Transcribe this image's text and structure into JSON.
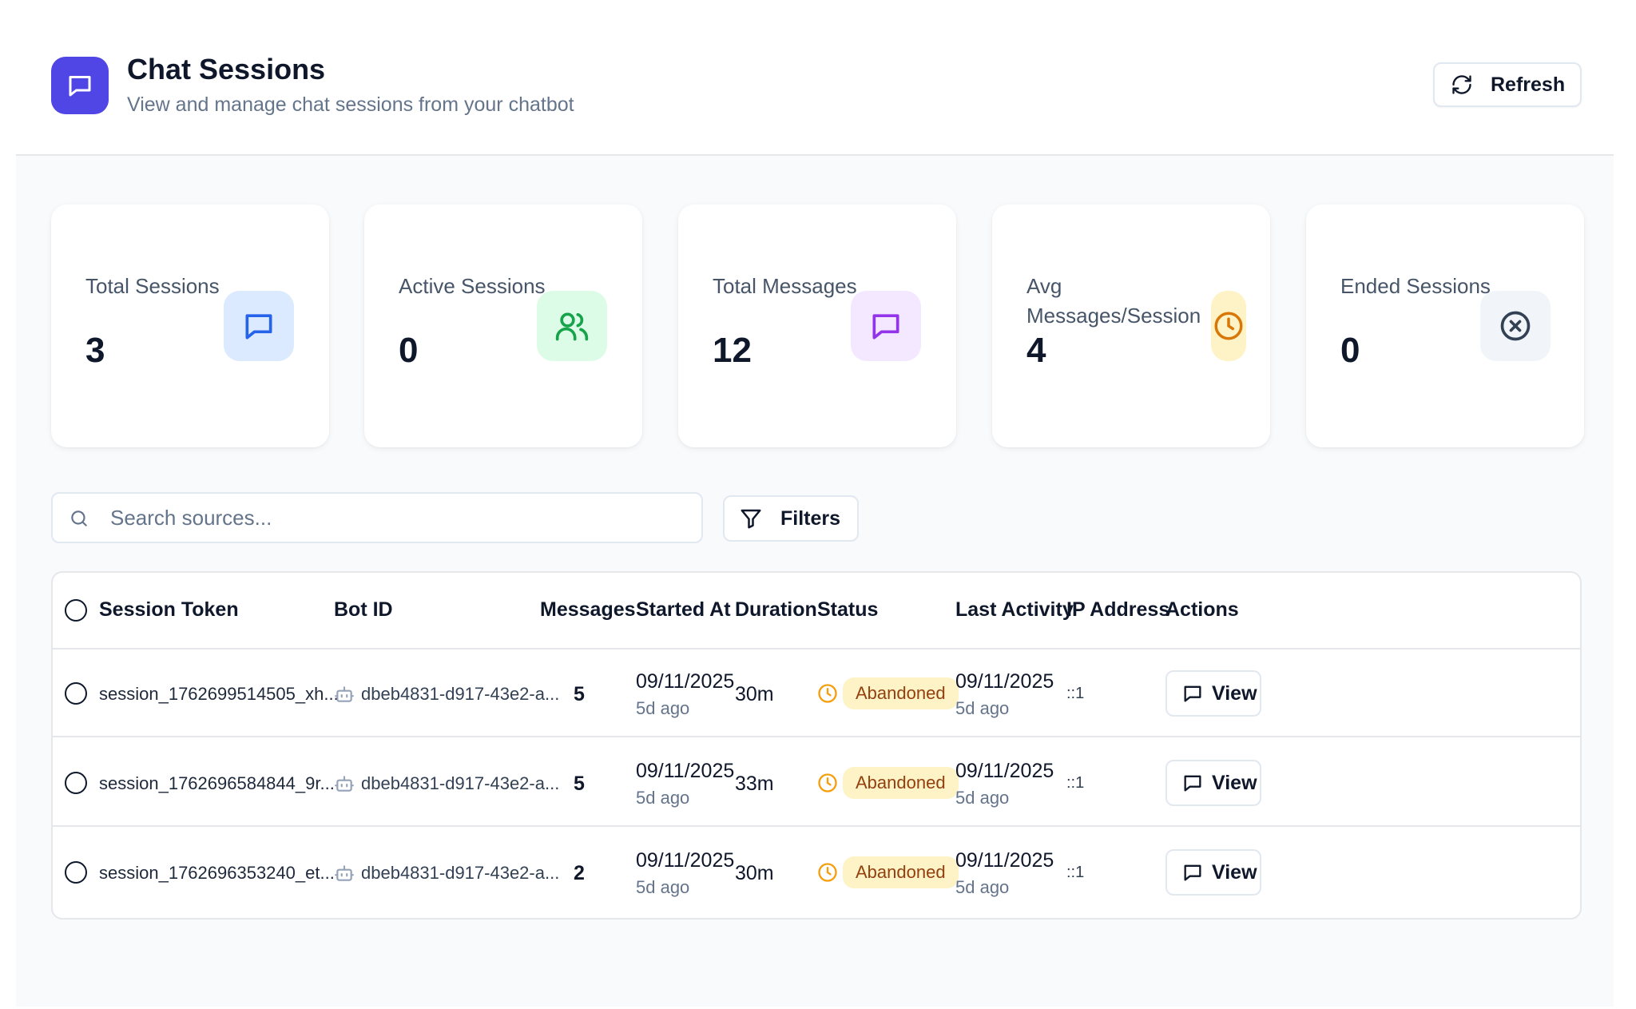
{
  "header": {
    "title": "Chat Sessions",
    "subtitle": "View and manage chat sessions from your chatbot",
    "refresh_label": "Refresh"
  },
  "stats": [
    {
      "label": "Total Sessions",
      "value": "3",
      "icon": "message-square-icon",
      "bg": "#dbeafe",
      "fg": "#2563eb"
    },
    {
      "label": "Active Sessions",
      "value": "0",
      "icon": "users-icon",
      "bg": "#dcfce7",
      "fg": "#16a34a"
    },
    {
      "label": "Total Messages",
      "value": "12",
      "icon": "message-square-icon",
      "bg": "#f3e8ff",
      "fg": "#9333ea"
    },
    {
      "label": "Avg Messages/Session",
      "value": "4",
      "icon": "clock-icon",
      "bg": "#fef3c7",
      "fg": "#d97706"
    },
    {
      "label": "Ended Sessions",
      "value": "0",
      "icon": "x-circle-icon",
      "bg": "#f1f5f9",
      "fg": "#334155"
    }
  ],
  "search": {
    "placeholder": "Search sources..."
  },
  "filters_label": "Filters",
  "table": {
    "columns": [
      "Session Token",
      "Bot ID",
      "Messages",
      "Started At",
      "Duration",
      "Status",
      "Last Activity",
      "IP Address",
      "Actions"
    ],
    "rows": [
      {
        "token": "session_1762699514505_xh...",
        "bot_id": "dbeb4831-d917-43e2-a...",
        "messages": "5",
        "started_date": "09/11/2025",
        "started_ago": "5d ago",
        "duration": "30m",
        "status": "Abandoned",
        "last_date": "09/11/2025",
        "last_ago": "5d ago",
        "ip": "::1",
        "action": "View"
      },
      {
        "token": "session_1762696584844_9r...",
        "bot_id": "dbeb4831-d917-43e2-a...",
        "messages": "5",
        "started_date": "09/11/2025",
        "started_ago": "5d ago",
        "duration": "33m",
        "status": "Abandoned",
        "last_date": "09/11/2025",
        "last_ago": "5d ago",
        "ip": "::1",
        "action": "View"
      },
      {
        "token": "session_1762696353240_et...",
        "bot_id": "dbeb4831-d917-43e2-a...",
        "messages": "2",
        "started_date": "09/11/2025",
        "started_ago": "5d ago",
        "duration": "30m",
        "status": "Abandoned",
        "last_date": "09/11/2025",
        "last_ago": "5d ago",
        "ip": "::1",
        "action": "View"
      }
    ]
  },
  "colors": {
    "brand": "#4f46e5",
    "status_warning": "#f59e0b",
    "badge_bg": "#fef3c7",
    "badge_text": "#92400e"
  }
}
